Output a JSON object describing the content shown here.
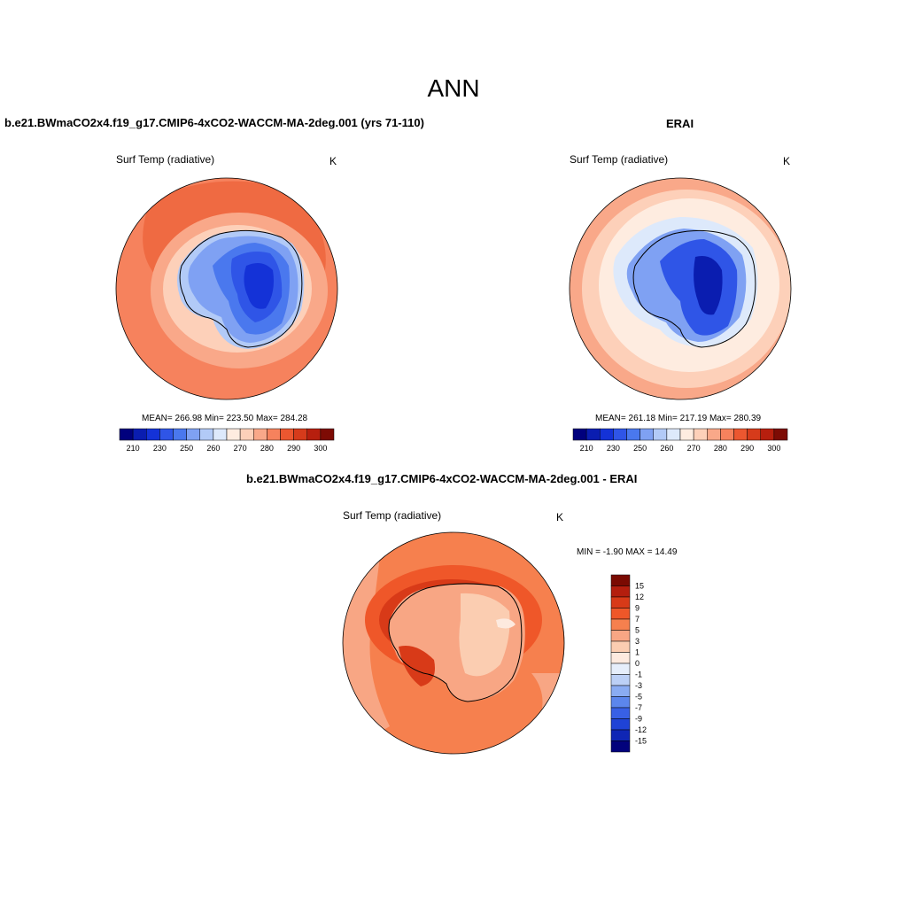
{
  "page": {
    "title": "ANN"
  },
  "colors": {
    "abs_scale": [
      "#00007d",
      "#0a1db0",
      "#1432d7",
      "#2f55e7",
      "#4a78ee",
      "#7fa1f3",
      "#b2caf7",
      "#dde9fb",
      "#feece0",
      "#fdd0b9",
      "#f9a889",
      "#f6825d",
      "#ec5730",
      "#d63b1b",
      "#b71f0e",
      "#7d0b04"
    ],
    "diff_scale": [
      "#7a0a02",
      "#b41e0e",
      "#d83a18",
      "#ef5729",
      "#f6804e",
      "#f8a684",
      "#fbcdb1",
      "#fdeadf",
      "#e6eefb",
      "#bcd0f6",
      "#8aacf2",
      "#5c86ec",
      "#3860e5",
      "#1f43d6",
      "#0f26b5",
      "#02027c"
    ]
  },
  "chart_data": [
    {
      "type": "heatmap",
      "projection": "south-polar-stereographic",
      "title": "b.e21.BWmaCO2x4.f19_g17.CMIP6-4xCO2-WACCM-MA-2deg.001 (yrs 71-110)",
      "variable": "Surf Temp (radiative)",
      "units": "K",
      "stats": {
        "mean": 266.98,
        "min": 223.5,
        "max": 284.28
      },
      "stats_text": "MEAN= 266.98  Min= 223.50  Max= 284.28",
      "colorbar": {
        "orientation": "horizontal",
        "tick_labels": [
          "210",
          "230",
          "250",
          "260",
          "270",
          "280",
          "290",
          "300"
        ]
      }
    },
    {
      "type": "heatmap",
      "projection": "south-polar-stereographic",
      "title": "ERAI",
      "variable": "Surf Temp (radiative)",
      "units": "K",
      "stats": {
        "mean": 261.18,
        "min": 217.19,
        "max": 280.39
      },
      "stats_text": "MEAN= 261.18  Min= 217.19  Max= 280.39",
      "colorbar": {
        "orientation": "horizontal",
        "tick_labels": [
          "210",
          "230",
          "250",
          "260",
          "270",
          "280",
          "290",
          "300"
        ]
      }
    },
    {
      "type": "heatmap",
      "projection": "south-polar-stereographic",
      "title": "b.e21.BWmaCO2x4.f19_g17.CMIP6-4xCO2-WACCM-MA-2deg.001 - ERAI",
      "variable": "Surf Temp (radiative)",
      "units": "K",
      "stats": {
        "min": -1.9,
        "max": 14.49
      },
      "stats_text": "MIN =  -1.90 MAX =  14.49",
      "colorbar": {
        "orientation": "vertical",
        "tick_labels": [
          "15",
          "12",
          "9",
          "7",
          "5",
          "3",
          "1",
          "0",
          "-1",
          "-3",
          "-5",
          "-7",
          "-9",
          "-12",
          "-15"
        ]
      }
    }
  ]
}
